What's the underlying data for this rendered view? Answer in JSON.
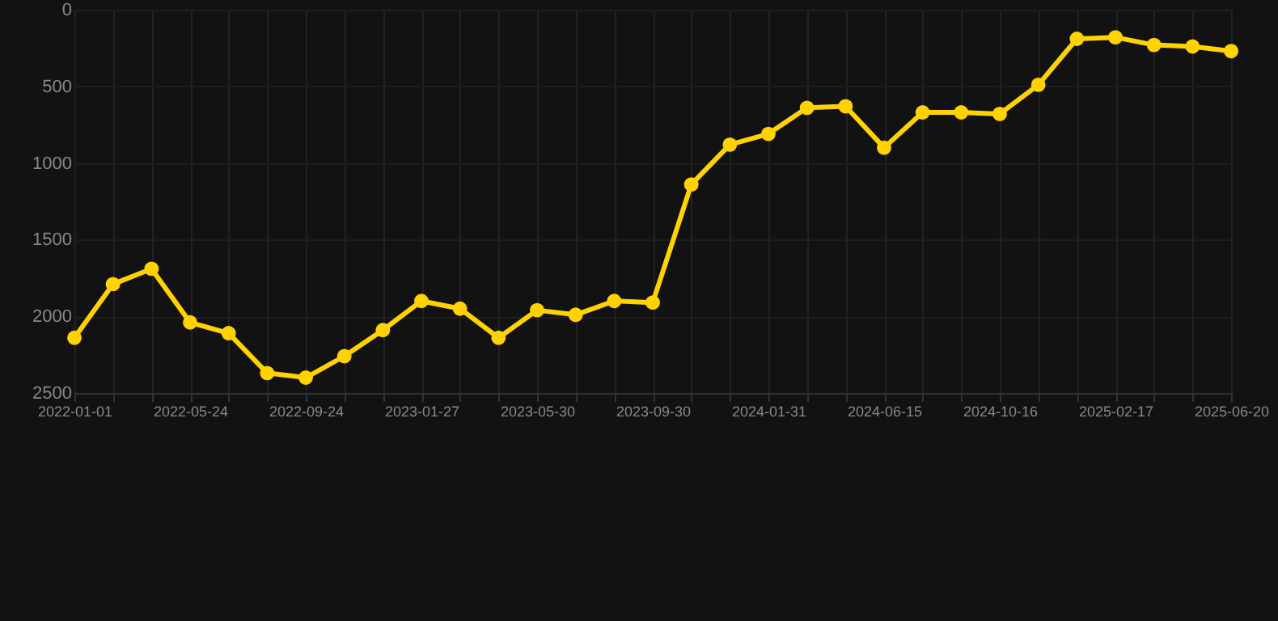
{
  "chart_data": {
    "type": "line",
    "categories": [
      "2022-01-01",
      null,
      null,
      "2022-05-24",
      null,
      null,
      "2022-09-24",
      null,
      null,
      "2023-01-27",
      null,
      null,
      "2023-05-30",
      null,
      null,
      "2023-09-30",
      null,
      null,
      "2024-01-31",
      null,
      null,
      "2024-06-15",
      null,
      null,
      "2024-10-16",
      null,
      null,
      "2025-02-17",
      null,
      null,
      "2025-06-20"
    ],
    "series": [
      {
        "color": "#ffd200",
        "values": [
          2140,
          1790,
          1690,
          2040,
          2110,
          2370,
          2400,
          2260,
          2090,
          1900,
          1950,
          2140,
          1960,
          1990,
          1900,
          1910,
          1140,
          880,
          810,
          640,
          630,
          900,
          670,
          670,
          680,
          490,
          190,
          180,
          230,
          240,
          270
        ]
      }
    ],
    "ylim": [
      2500,
      0
    ],
    "yticks": [
      0,
      500,
      1000,
      1500,
      2000,
      2500
    ],
    "grid": true,
    "marker": "circle",
    "line_style": "solid"
  }
}
